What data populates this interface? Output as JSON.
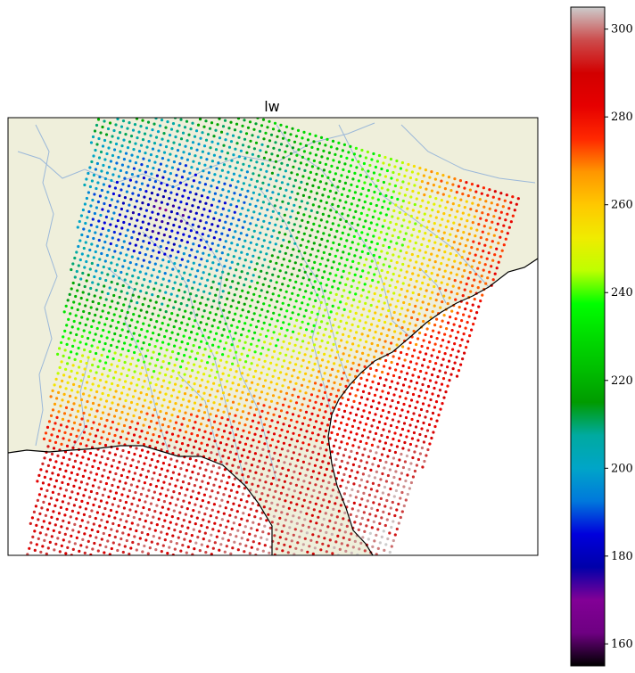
{
  "chart_data": {
    "type": "scatter",
    "title": "lw",
    "xlabel": "",
    "ylabel": "",
    "map": {
      "land_color": "#efefdb",
      "ocean_color": "#ffffff",
      "river_color": "#9bb8d9",
      "coast_color": "#000000"
    },
    "colorbar": {
      "colormap": "nipy_spectral",
      "min": 155,
      "max": 305,
      "ticks": [
        160,
        180,
        200,
        220,
        240,
        260,
        280,
        300
      ],
      "tick_labels": [
        "160",
        "180",
        "200",
        "220",
        "240",
        "260",
        "280",
        "300"
      ]
    },
    "swath": {
      "description_values": "brightness-like field, low values (~175-215) in northwest interior, rising toward ~280-290 over gulf and atlantic waters",
      "value_range": [
        170,
        292
      ]
    }
  }
}
